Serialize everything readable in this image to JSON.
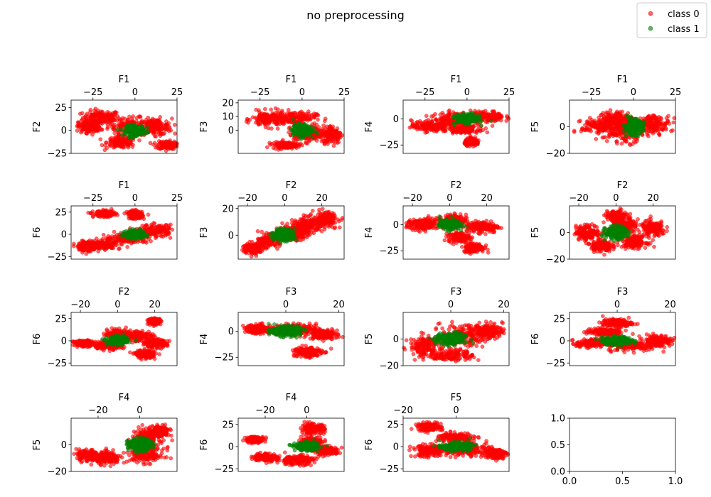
{
  "chart_data": {
    "type": "scatter",
    "title": "no preprocessing",
    "legend": {
      "placement": "top-right",
      "entries": [
        {
          "name": "class 0",
          "color": "#ff0000"
        },
        {
          "name": "class 1",
          "color": "#008000"
        }
      ]
    },
    "colors": {
      "class 0": "#ff0000",
      "class 1": "#008000"
    },
    "panels": [
      {
        "xlabel": "F1",
        "ylabel": "F2",
        "xlim": [
          -38,
          25
        ],
        "ylim": [
          -25,
          33
        ],
        "xticks": [
          -25,
          0,
          25
        ],
        "yticks": [
          -25,
          0,
          25
        ],
        "clusters0": [
          [
            -20,
            14,
            10,
            7
          ],
          [
            -3,
            5,
            12,
            8
          ],
          [
            -8,
            -13,
            8,
            6
          ],
          [
            12,
            4,
            9,
            8
          ],
          [
            19,
            -16,
            5,
            4
          ],
          [
            -27,
            4,
            6,
            6
          ]
        ],
        "clusters1": [
          [
            0,
            0,
            5,
            5
          ]
        ]
      },
      {
        "xlabel": "F1",
        "ylabel": "F3",
        "xlim": [
          -38,
          25
        ],
        "ylim": [
          -17,
          22
        ],
        "xticks": [
          -25,
          0,
          25
        ],
        "yticks": [
          0,
          10,
          20
        ],
        "clusters0": [
          [
            -20,
            8,
            9,
            5
          ],
          [
            -5,
            9,
            12,
            4
          ],
          [
            5,
            -3,
            9,
            5
          ],
          [
            18,
            -3,
            5,
            6
          ],
          [
            -10,
            -11,
            7,
            2
          ]
        ],
        "clusters1": [
          [
            0,
            0,
            5,
            4
          ]
        ]
      },
      {
        "xlabel": "F1",
        "ylabel": "F4",
        "xlim": [
          -38,
          25
        ],
        "ylim": [
          -33,
          18
        ],
        "xticks": [
          -25,
          0,
          25
        ],
        "yticks": [
          -25,
          0
        ],
        "clusters0": [
          [
            -22,
            -7,
            10,
            5
          ],
          [
            -8,
            0,
            10,
            6
          ],
          [
            12,
            2,
            9,
            5
          ],
          [
            3,
            -22,
            4,
            3
          ],
          [
            -2,
            -10,
            8,
            3
          ]
        ],
        "clusters1": [
          [
            0,
            0,
            6,
            4
          ]
        ]
      },
      {
        "xlabel": "F1",
        "ylabel": "F5",
        "xlim": [
          -38,
          25
        ],
        "ylim": [
          -20,
          20
        ],
        "xticks": [
          -25,
          0,
          25
        ],
        "yticks": [
          -20,
          0
        ],
        "clusters0": [
          [
            -20,
            0,
            10,
            6
          ],
          [
            -5,
            -3,
            10,
            8
          ],
          [
            12,
            2,
            9,
            6
          ],
          [
            -10,
            6,
            8,
            5
          ]
        ],
        "clusters1": [
          [
            0,
            0,
            5,
            5
          ]
        ]
      },
      {
        "xlabel": "F1",
        "ylabel": "F6",
        "xlim": [
          -38,
          25
        ],
        "ylim": [
          -28,
          32
        ],
        "xticks": [
          -25,
          0,
          25
        ],
        "yticks": [
          -25,
          0,
          25
        ],
        "clusters0": [
          [
            -20,
            -12,
            10,
            4
          ],
          [
            -5,
            -5,
            12,
            5
          ],
          [
            12,
            4,
            9,
            6
          ],
          [
            -18,
            23,
            6,
            3
          ],
          [
            0,
            22,
            4,
            4
          ],
          [
            -28,
            -14,
            5,
            5
          ]
        ],
        "clusters1": [
          [
            0,
            0,
            5,
            4
          ]
        ]
      },
      {
        "xlabel": "F2",
        "ylabel": "F3",
        "xlim": [
          -25,
          32
        ],
        "ylim": [
          -18,
          22
        ],
        "xticks": [
          -20,
          0,
          20
        ],
        "yticks": [
          0,
          20
        ],
        "clusters0": [
          [
            -17,
            -10,
            5,
            4
          ],
          [
            -8,
            -4,
            5,
            4
          ],
          [
            12,
            8,
            8,
            5
          ],
          [
            22,
            12,
            6,
            5
          ],
          [
            5,
            2,
            7,
            5
          ]
        ],
        "clusters1": [
          [
            0,
            0,
            5,
            4
          ]
        ]
      },
      {
        "xlabel": "F2",
        "ylabel": "F4",
        "xlim": [
          -25,
          32
        ],
        "ylim": [
          -33,
          18
        ],
        "xticks": [
          -20,
          0,
          20
        ],
        "yticks": [
          -25,
          0
        ],
        "clusters0": [
          [
            -15,
            0,
            7,
            5
          ],
          [
            0,
            3,
            8,
            6
          ],
          [
            18,
            -2,
            8,
            5
          ],
          [
            13,
            -22,
            5,
            4
          ],
          [
            5,
            -12,
            5,
            4
          ]
        ],
        "clusters1": [
          [
            0,
            0,
            5,
            4
          ]
        ]
      },
      {
        "xlabel": "F2",
        "ylabel": "F5",
        "xlim": [
          -25,
          32
        ],
        "ylim": [
          -20,
          20
        ],
        "xticks": [
          -20,
          0,
          20
        ],
        "yticks": [
          -20,
          0
        ],
        "clusters0": [
          [
            -15,
            0,
            6,
            5
          ],
          [
            -8,
            -10,
            5,
            4
          ],
          [
            5,
            5,
            6,
            6
          ],
          [
            20,
            3,
            6,
            5
          ],
          [
            10,
            -7,
            6,
            4
          ],
          [
            0,
            12,
            5,
            4
          ]
        ],
        "clusters1": [
          [
            0,
            0,
            5,
            4
          ]
        ]
      },
      {
        "xlabel": "F2",
        "ylabel": "F6",
        "xlim": [
          -25,
          32
        ],
        "ylim": [
          -28,
          32
        ],
        "xticks": [
          -20,
          0,
          20
        ],
        "yticks": [
          -25,
          0,
          25
        ],
        "clusters0": [
          [
            -18,
            -3,
            5,
            3
          ],
          [
            -5,
            -5,
            7,
            4
          ],
          [
            10,
            5,
            8,
            6
          ],
          [
            20,
            -3,
            6,
            4
          ],
          [
            20,
            22,
            3,
            3
          ],
          [
            0,
            8,
            5,
            4
          ],
          [
            15,
            -15,
            5,
            4
          ]
        ],
        "clusters1": [
          [
            0,
            0,
            5,
            4
          ]
        ]
      },
      {
        "xlabel": "F3",
        "ylabel": "F4",
        "xlim": [
          -18,
          22
        ],
        "ylim": [
          -33,
          18
        ],
        "xticks": [
          0,
          20
        ],
        "yticks": [
          -25,
          0
        ],
        "clusters0": [
          [
            -10,
            2,
            5,
            4
          ],
          [
            5,
            2,
            8,
            4
          ],
          [
            14,
            -3,
            5,
            4
          ],
          [
            8,
            -20,
            5,
            5
          ]
        ],
        "clusters1": [
          [
            0,
            0,
            5,
            4
          ]
        ]
      },
      {
        "xlabel": "F3",
        "ylabel": "F5",
        "xlim": [
          -18,
          22
        ],
        "ylim": [
          -20,
          20
        ],
        "xticks": [
          0,
          20
        ],
        "yticks": [
          -20,
          0
        ],
        "clusters0": [
          [
            -10,
            -5,
            5,
            7
          ],
          [
            5,
            3,
            8,
            7
          ],
          [
            14,
            6,
            5,
            5
          ],
          [
            0,
            -12,
            8,
            4
          ]
        ],
        "clusters1": [
          [
            0,
            0,
            5,
            4
          ]
        ]
      },
      {
        "xlabel": "F3",
        "ylabel": "F6",
        "xlim": [
          -18,
          22
        ],
        "ylim": [
          -28,
          32
        ],
        "xticks": [
          0,
          20
        ],
        "yticks": [
          -25,
          0,
          25
        ],
        "clusters0": [
          [
            -10,
            -3,
            5,
            4
          ],
          [
            5,
            -5,
            8,
            6
          ],
          [
            15,
            0,
            5,
            6
          ],
          [
            0,
            20,
            5,
            4
          ],
          [
            -5,
            10,
            6,
            4
          ]
        ],
        "clusters1": [
          [
            0,
            0,
            5,
            4
          ]
        ]
      },
      {
        "xlabel": "F4",
        "ylabel": "F5",
        "xlim": [
          -33,
          18
        ],
        "ylim": [
          -20,
          20
        ],
        "xticks": [
          -20,
          0
        ],
        "yticks": [
          -20,
          0
        ],
        "clusters0": [
          [
            -25,
            -8,
            5,
            4
          ],
          [
            -15,
            -10,
            5,
            4
          ],
          [
            3,
            5,
            6,
            7
          ],
          [
            3,
            -8,
            8,
            5
          ],
          [
            10,
            10,
            4,
            4
          ]
        ],
        "clusters1": [
          [
            0,
            0,
            5,
            4
          ]
        ]
      },
      {
        "xlabel": "F4",
        "ylabel": "F6",
        "xlim": [
          -33,
          18
        ],
        "ylim": [
          -28,
          32
        ],
        "xticks": [
          -20,
          0
        ],
        "yticks": [
          -25,
          0,
          25
        ],
        "clusters0": [
          [
            -25,
            8,
            4,
            3
          ],
          [
            -20,
            -12,
            5,
            4
          ],
          [
            -5,
            -15,
            8,
            5
          ],
          [
            3,
            20,
            5,
            5
          ],
          [
            3,
            5,
            5,
            5
          ],
          [
            10,
            -5,
            5,
            4
          ]
        ],
        "clusters1": [
          [
            0,
            0,
            5,
            4
          ]
        ]
      },
      {
        "xlabel": "F5",
        "ylabel": "F6",
        "xlim": [
          -20,
          20
        ],
        "ylim": [
          -28,
          32
        ],
        "xticks": [
          -20,
          0
        ],
        "yticks": [
          -25,
          0,
          25
        ],
        "clusters0": [
          [
            -10,
            -5,
            6,
            6
          ],
          [
            5,
            -3,
            8,
            7
          ],
          [
            -10,
            22,
            4,
            4
          ],
          [
            15,
            -8,
            4,
            5
          ],
          [
            0,
            10,
            6,
            5
          ]
        ],
        "clusters1": [
          [
            0,
            0,
            5,
            4
          ]
        ]
      },
      {
        "empty": true,
        "xlim": [
          0,
          1
        ],
        "ylim": [
          0,
          1
        ],
        "xticks": [
          0,
          0.5,
          1
        ],
        "yticks": [
          0,
          0.5,
          1
        ],
        "xticklabels": [
          "0.0",
          "0.5",
          "1.0"
        ],
        "yticklabels": [
          "0.0",
          "0.5",
          "1.0"
        ]
      }
    ]
  }
}
